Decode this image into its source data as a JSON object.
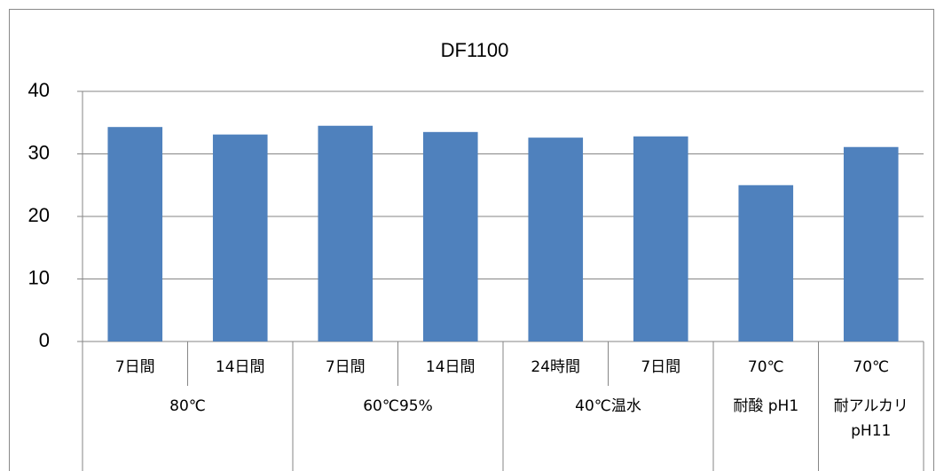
{
  "chart_data": {
    "type": "bar",
    "title": "DF1100",
    "categories": [
      "7日間",
      "14日間",
      "7日間",
      "14日間",
      "24時間",
      "7日間",
      "70℃",
      "70℃"
    ],
    "groups": [
      {
        "label": "80℃",
        "span": 2
      },
      {
        "label": "60℃95%",
        "span": 2
      },
      {
        "label": "40℃温水",
        "span": 2
      },
      {
        "label": "耐酸 pH1",
        "span": 1
      },
      {
        "label": "耐アルカリ pH11",
        "span": 1
      }
    ],
    "values": [
      34.3,
      33.1,
      34.5,
      33.5,
      32.6,
      32.8,
      25.0,
      31.1
    ],
    "color": "#4f81bd",
    "ylim": [
      0,
      40
    ],
    "yticks": [
      0,
      10,
      20,
      30,
      40
    ],
    "grid": true
  }
}
